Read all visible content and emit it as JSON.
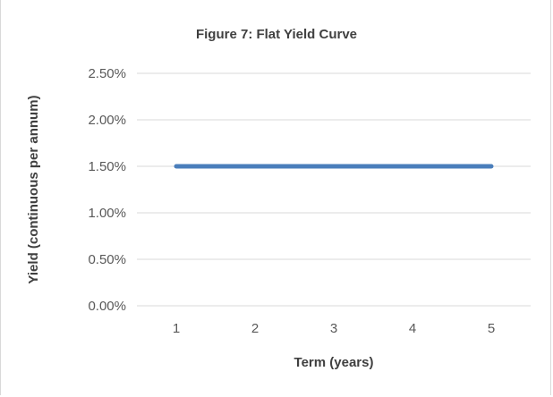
{
  "chart_data": {
    "type": "line",
    "title": "Figure 7: Flat Yield Curve",
    "xlabel": "Term (years)",
    "ylabel": "Yield (continuous per annum)",
    "x": [
      1,
      2,
      3,
      4,
      5
    ],
    "series": [
      {
        "values": [
          1.5,
          1.5,
          1.5,
          1.5,
          1.5
        ],
        "color": "#4a7ebb"
      }
    ],
    "y_ticks": [
      "0.00%",
      "0.50%",
      "1.00%",
      "1.50%",
      "2.00%",
      "2.50%"
    ],
    "x_ticks": [
      "1",
      "2",
      "3",
      "4",
      "5"
    ],
    "ylim": [
      0,
      2.5
    ],
    "grid": true,
    "legend": "none",
    "gridline_color": "#d9d9d9"
  }
}
